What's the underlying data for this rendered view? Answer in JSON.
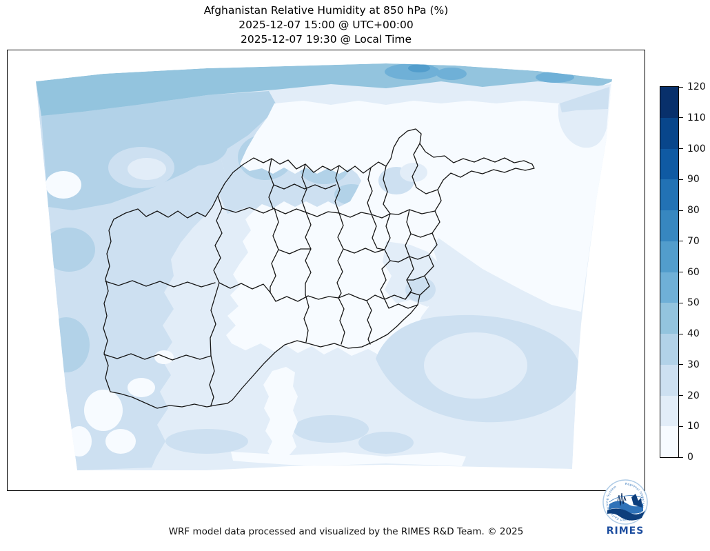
{
  "header": {
    "line1": "Afghanistan Relative Humidity at 850 hPa (%)",
    "line2": "2025-12-07 15:00 @ UTC+00:00",
    "line3": "2025-12-07 19:30 @ Local Time"
  },
  "footer": {
    "credit": "WRF model data processed and visualized by the RIMES R&D Team. © 2025"
  },
  "logo": {
    "label": "RIMES",
    "ring_text": "Regional Integrated Multi-Hazard Early Warning System",
    "brand_color": "#1b4c9e"
  },
  "colorbar": {
    "min": 0,
    "max": 120,
    "step": 10,
    "ticks": [
      "0",
      "10",
      "20",
      "30",
      "40",
      "50",
      "60",
      "70",
      "80",
      "90",
      "100",
      "110",
      "120"
    ],
    "colors": [
      "#f7fbff",
      "#e2edf8",
      "#cde0f1",
      "#b2d2e8",
      "#93c4de",
      "#6fb0d7",
      "#529dcc",
      "#3787c0",
      "#2272b5",
      "#0f5aa3",
      "#08468b",
      "#08306b"
    ],
    "outline_color": "#000000"
  },
  "map": {
    "boundary_color": "#161616",
    "background_color": "#ffffff"
  },
  "chart_data": {
    "type": "heatmap",
    "title": "Afghanistan Relative Humidity at 850 hPa (%)",
    "variable": "Relative Humidity",
    "level": "850 hPa",
    "units": "%",
    "valid_time_utc": "2025-12-07 15:00 @ UTC+00:00",
    "valid_time_local": "2025-12-07 19:30 @ Local Time",
    "colormap": "Blues",
    "contour_levels": [
      0,
      10,
      20,
      30,
      40,
      50,
      60,
      70,
      80,
      90,
      100,
      110,
      120
    ],
    "colorbar_range": [
      0,
      120
    ],
    "legend_position": "right",
    "observed_regions": [
      {
        "region": "northern edge of domain",
        "rh_percent": "40-70"
      },
      {
        "region": "northwest quadrant of domain",
        "rh_percent": "20-40"
      },
      {
        "region": "central and eastern Afghanistan",
        "rh_percent": "0-10"
      },
      {
        "region": "western Afghanistan / Iran border",
        "rh_percent": "20-30"
      },
      {
        "region": "southern Afghanistan and southwest domain",
        "rh_percent": "10-30"
      },
      {
        "region": "southeast corner of domain (Pakistan side)",
        "rh_percent": "10-30"
      },
      {
        "region": "top-right corner patch",
        "rh_percent": "10-30"
      }
    ]
  }
}
